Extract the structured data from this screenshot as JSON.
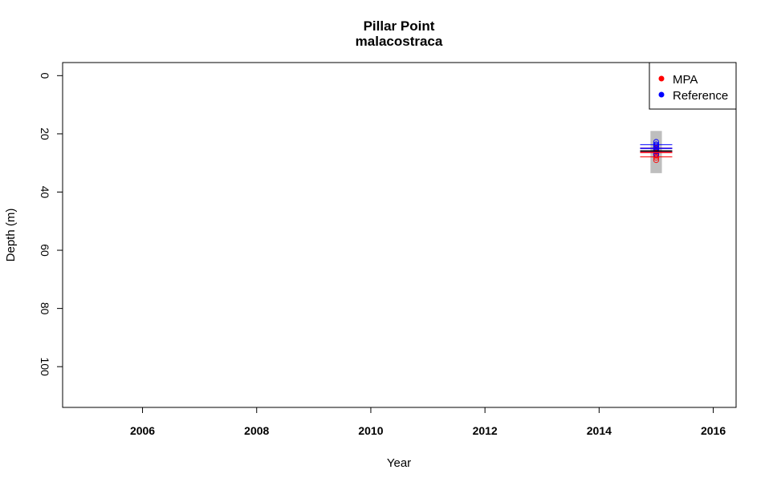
{
  "chart_data": {
    "type": "scatter",
    "title": "Pillar Point",
    "subtitle": "malacostraca",
    "xlabel": "Year",
    "ylabel": "Depth (m)",
    "xlim": [
      2004.6,
      2016.4
    ],
    "ylim": [
      114,
      -4.5
    ],
    "y_reversed": true,
    "x_ticks": [
      2006,
      2008,
      2010,
      2012,
      2014,
      2016
    ],
    "y_ticks": [
      0,
      20,
      40,
      60,
      80,
      100
    ],
    "x_tick_labels": [
      "2006",
      "2008",
      "2010",
      "2012",
      "2014",
      "2016"
    ],
    "y_tick_labels": [
      "0",
      "20",
      "40",
      "60",
      "80",
      "100"
    ],
    "legend": {
      "position": "top-right",
      "entries": [
        {
          "label": "MPA",
          "color": "#ff0000"
        },
        {
          "label": "Reference",
          "color": "#0000ff"
        }
      ]
    },
    "range_band": {
      "x": 2015,
      "half_width_years": 0.1,
      "depth_min": 19,
      "depth_max": 33.5,
      "color": "#bebebe"
    },
    "series": [
      {
        "name": "MPA",
        "color": "#ff0000",
        "points": [
          {
            "x": 2015,
            "y": 24.8
          },
          {
            "x": 2015,
            "y": 25.3
          },
          {
            "x": 2015,
            "y": 25.8
          },
          {
            "x": 2015,
            "y": 26.2
          },
          {
            "x": 2015,
            "y": 26.6
          },
          {
            "x": 2015,
            "y": 27.0
          },
          {
            "x": 2015,
            "y": 27.5
          },
          {
            "x": 2015,
            "y": 28.2
          },
          {
            "x": 2015,
            "y": 29.0
          }
        ],
        "mean": 26.4,
        "interval": [
          24.9,
          27.9
        ]
      },
      {
        "name": "Reference",
        "color": "#0000ff",
        "points": [
          {
            "x": 2015,
            "y": 22.8
          },
          {
            "x": 2015,
            "y": 23.6
          },
          {
            "x": 2015,
            "y": 24.0
          },
          {
            "x": 2015,
            "y": 24.5
          },
          {
            "x": 2015,
            "y": 25.0
          },
          {
            "x": 2015,
            "y": 25.5
          },
          {
            "x": 2015,
            "y": 26.0
          },
          {
            "x": 2015,
            "y": 27.0
          }
        ],
        "mean": 25.0,
        "interval": [
          23.7,
          26.3
        ]
      }
    ],
    "overall_mean": {
      "y": 25.9,
      "color": "#000000"
    }
  }
}
